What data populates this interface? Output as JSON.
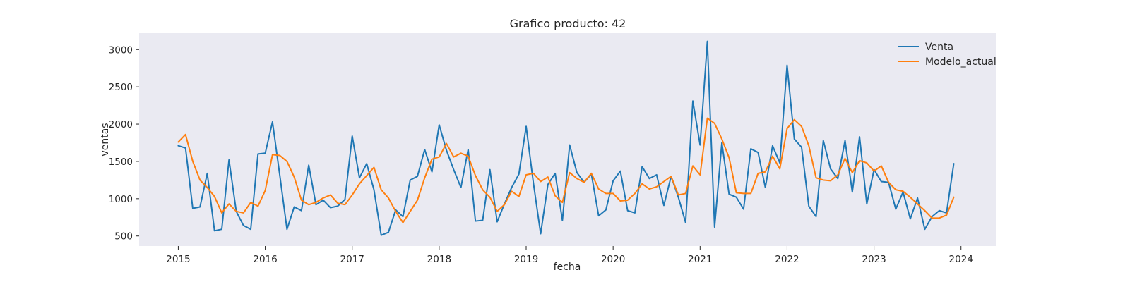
{
  "chart_data": {
    "type": "line",
    "title": "Grafico producto: 42",
    "xlabel": "fecha",
    "ylabel": "ventas",
    "x_start": "2015-01",
    "x_ticks": [
      "2015",
      "2016",
      "2017",
      "2018",
      "2019",
      "2020",
      "2021",
      "2022",
      "2023",
      "2024"
    ],
    "y_ticks": [
      500,
      1000,
      1500,
      2000,
      2500,
      3000
    ],
    "xlim": [
      2014.55,
      2024.4
    ],
    "ylim": [
      365,
      3220
    ],
    "grid": false,
    "legend_position": "top-right",
    "background": "#eaeaf2",
    "series": [
      {
        "name": "Venta",
        "color": "#1f77b4",
        "values": [
          1710,
          1680,
          870,
          890,
          1340,
          570,
          590,
          1520,
          830,
          640,
          590,
          1600,
          1610,
          2030,
          1320,
          590,
          890,
          840,
          1450,
          920,
          980,
          880,
          900,
          990,
          1840,
          1280,
          1470,
          1120,
          510,
          550,
          850,
          760,
          1250,
          1300,
          1660,
          1360,
          1990,
          1650,
          1390,
          1150,
          1660,
          700,
          710,
          1390,
          690,
          930,
          1150,
          1330,
          1970,
          1210,
          530,
          1190,
          1340,
          710,
          1720,
          1350,
          1220,
          1330,
          770,
          850,
          1240,
          1370,
          840,
          810,
          1430,
          1270,
          1320,
          910,
          1300,
          1020,
          680,
          2310,
          1720,
          3110,
          620,
          1750,
          1060,
          1020,
          860,
          1670,
          1620,
          1150,
          1710,
          1480,
          2790,
          1800,
          1690,
          900,
          760,
          1780,
          1400,
          1270,
          1780,
          1090,
          1830,
          930,
          1390,
          1230,
          1220,
          860,
          1090,
          730,
          1010,
          590,
          760,
          840,
          810,
          1470
        ]
      },
      {
        "name": "Modelo_actual",
        "color": "#ff7f0e",
        "values": [
          1760,
          1860,
          1500,
          1250,
          1150,
          1030,
          810,
          930,
          830,
          810,
          950,
          900,
          1110,
          1590,
          1580,
          1500,
          1290,
          980,
          920,
          950,
          1010,
          1050,
          940,
          920,
          1050,
          1200,
          1310,
          1420,
          1120,
          1010,
          830,
          680,
          830,
          980,
          1280,
          1530,
          1560,
          1740,
          1560,
          1610,
          1570,
          1310,
          1120,
          1020,
          830,
          920,
          1100,
          1030,
          1320,
          1340,
          1230,
          1290,
          1040,
          950,
          1350,
          1270,
          1220,
          1340,
          1130,
          1070,
          1070,
          970,
          980,
          1070,
          1200,
          1130,
          1160,
          1230,
          1300,
          1050,
          1070,
          1440,
          1320,
          2080,
          2010,
          1800,
          1550,
          1080,
          1070,
          1070,
          1340,
          1360,
          1570,
          1400,
          1940,
          2060,
          1970,
          1710,
          1280,
          1250,
          1240,
          1320,
          1540,
          1350,
          1510,
          1480,
          1370,
          1440,
          1220,
          1120,
          1100,
          1020,
          930,
          840,
          740,
          740,
          780,
          1020
        ]
      }
    ]
  }
}
